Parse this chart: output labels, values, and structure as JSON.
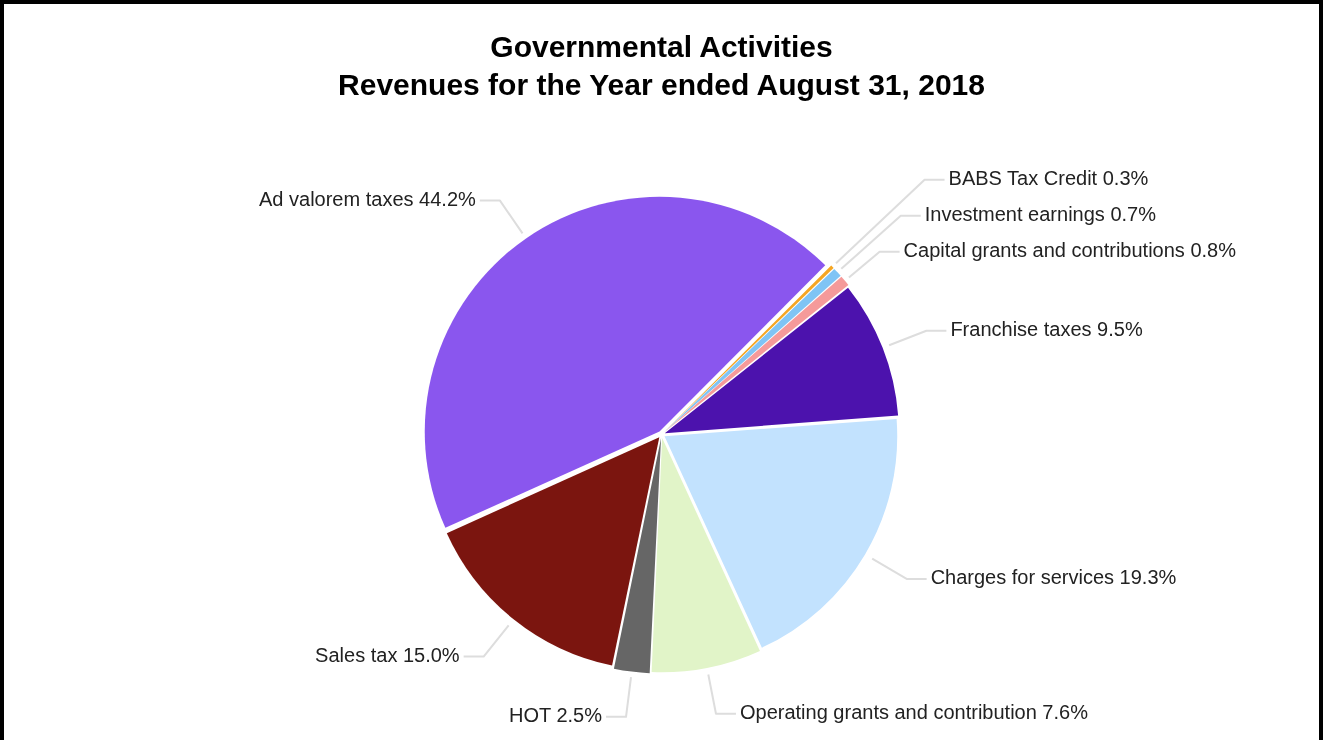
{
  "chart_data": {
    "type": "pie",
    "title": "Governmental Activities\nRevenues for the Year ended August 31, 2018",
    "categories": [
      "BABS Tax Credit",
      "Investment earnings",
      "Capital grants and contributions",
      "Franchise taxes",
      "Charges for services",
      "Operating grants and contribution",
      "HOT",
      "Sales tax",
      "Ad valorem taxes"
    ],
    "values": [
      0.3,
      0.7,
      0.8,
      9.5,
      19.3,
      7.6,
      2.5,
      15.0,
      44.2
    ],
    "value_labels": [
      "0.3%",
      "0.7%",
      "0.8%",
      "9.5%",
      "19.3%",
      "7.6%",
      "2.5%",
      "15.0%",
      "44.2%"
    ],
    "colors": [
      "#f5a623",
      "#7fc4f5",
      "#f59a9a",
      "#4c12ad",
      "#c2e2fe",
      "#e1f4c8",
      "#666666",
      "#7b150f",
      "#8a56ee"
    ],
    "legend": false
  }
}
